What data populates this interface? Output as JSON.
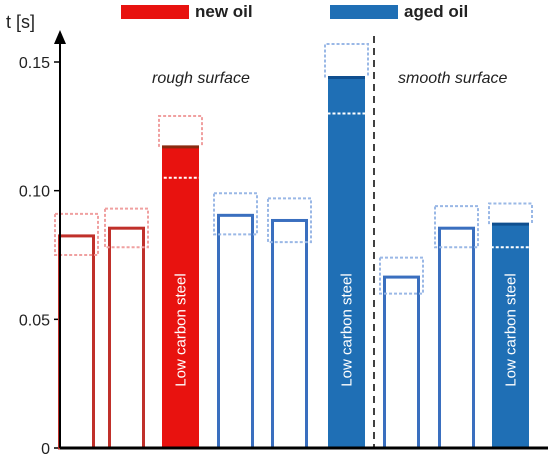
{
  "chart_data": {
    "type": "bar",
    "ylabel": "t [s]",
    "ylim": [
      0,
      0.155
    ],
    "yticks": [
      0,
      0.05,
      0.1,
      0.15
    ],
    "ytick_labels": [
      "0",
      "0.05",
      "0.10",
      "0.15"
    ],
    "legend": [
      {
        "name": "new oil",
        "color": "#e8120f"
      },
      {
        "name": "aged oil",
        "color": "#1f6fb5"
      }
    ],
    "regions": {
      "rough": "rough surface",
      "smooth": "smooth surface"
    },
    "bar_label": "Low carbon steel",
    "colors": {
      "new_edge": "#c0302a",
      "new_fill": "#e8120f",
      "new_err": "#f0a0a0",
      "aged_edge": "#3a6fbf",
      "aged_fill": "#1f6fb5",
      "aged_err": "#9ab8e6"
    },
    "bars": [
      {
        "series": "new oil",
        "surface": "rough",
        "value": 0.083,
        "err_hi": 0.091,
        "err_lo": 0.075,
        "filled": false,
        "label": false
      },
      {
        "series": "new oil",
        "surface": "rough",
        "value": 0.086,
        "err_hi": 0.093,
        "err_lo": 0.078,
        "filled": false,
        "label": false
      },
      {
        "series": "new oil",
        "surface": "rough",
        "value": 0.117,
        "err_hi": 0.129,
        "err_lo": 0.105,
        "filled": true,
        "label": true
      },
      {
        "series": "aged oil",
        "surface": "rough",
        "value": 0.091,
        "err_hi": 0.099,
        "err_lo": 0.083,
        "filled": false,
        "label": false
      },
      {
        "series": "aged oil",
        "surface": "rough",
        "value": 0.089,
        "err_hi": 0.097,
        "err_lo": 0.08,
        "filled": false,
        "label": false
      },
      {
        "series": "aged oil",
        "surface": "rough",
        "value": 0.144,
        "err_hi": 0.157,
        "err_lo": 0.13,
        "filled": true,
        "label": true
      },
      {
        "series": "aged oil",
        "surface": "smooth",
        "value": 0.067,
        "err_hi": 0.074,
        "err_lo": 0.06,
        "filled": false,
        "label": false
      },
      {
        "series": "aged oil",
        "surface": "smooth",
        "value": 0.086,
        "err_hi": 0.094,
        "err_lo": 0.078,
        "filled": false,
        "label": false
      },
      {
        "series": "aged oil",
        "surface": "smooth",
        "value": 0.087,
        "err_hi": 0.095,
        "err_lo": 0.078,
        "filled": true,
        "label": true
      }
    ]
  }
}
